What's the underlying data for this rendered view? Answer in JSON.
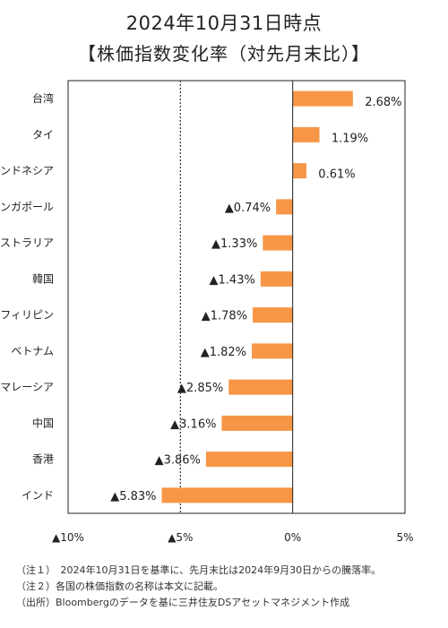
{
  "chart_data": {
    "type": "bar",
    "orientation": "horizontal",
    "title": "2024年10月31日時点",
    "subtitle": "【株価指数変化率（対先月末比）】",
    "categories": [
      "台湾",
      "タイ",
      "インドネシア",
      "シンガポール",
      "オーストラリア",
      "韓国",
      "フィリピン",
      "ベトナム",
      "マレーシア",
      "中国",
      "香港",
      "インド"
    ],
    "values": [
      2.68,
      1.19,
      0.61,
      -0.74,
      -1.33,
      -1.43,
      -1.78,
      -1.82,
      -2.85,
      -3.16,
      -3.86,
      -5.83
    ],
    "value_labels": [
      "2.68%",
      "1.19%",
      "0.61%",
      "▲0.74%",
      "▲1.33%",
      "▲1.43%",
      "▲1.78%",
      "▲1.82%",
      "▲2.85%",
      "▲3.16%",
      "▲3.86%",
      "▲5.83%"
    ],
    "xlim": [
      -10,
      5
    ],
    "x_ticks": [
      -10,
      -5,
      0,
      5
    ],
    "x_tick_labels": [
      "▲10%",
      "▲5%",
      "0%",
      "5%"
    ],
    "reference_line": -5,
    "grid": false,
    "bar_color": "#F79646"
  },
  "footnotes": {
    "note1": "（注１）　2024年10月31日を基準に、先月末比は2024年9月30日からの騰落率。",
    "note2": "（注２）各国の株価指数の名称は本文に記載。",
    "note3": "（出所）Bloombergのデータを基に三井住友DSアセットマネジメント作成"
  }
}
